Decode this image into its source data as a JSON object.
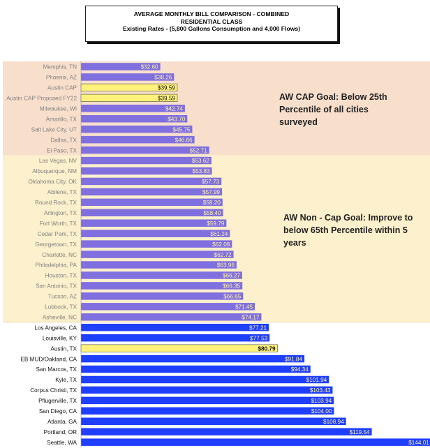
{
  "colors": {
    "zone_cap_bg": "#F8DFCC",
    "zone_noncap_bg": "#FDF0CC",
    "bar_purple": "#7F6FDF",
    "bar_yellow": "#FFF27A",
    "bar_blue": "#1F3FFF",
    "label_gray": "#7F7F7F",
    "label_dark": "#111111",
    "value_light": "#FFF3A8",
    "value_dark": "#111111"
  },
  "goals": {
    "cap": "AW CAP Goal: Below 25th Percentile of all cities surveyed",
    "noncap": "AW Non - Cap Goal: Improve to below 65th Percentile within 5 years"
  },
  "chart_data": {
    "type": "bar",
    "orientation": "horizontal",
    "title": "AVERAGE MONTHLY BILL COMPARISON - COMBINED",
    "subtitle": "RESIDENTIAL CLASS",
    "subtitle2": "Existing Rates - (5,800 Gallons Consumption and 4,000 Flows)",
    "xlim": [
      0,
      150
    ],
    "grid": false,
    "categories": [
      "Memphis, TN",
      "Phoenix, AZ",
      "Austin CAP",
      "Austin CAP Proposed FY22",
      "Milwaukee, WI",
      "Amarillo, TX",
      "Salt Lake City, UT",
      "Dallas, TX",
      "El Paso, TX",
      "Las Vegas, NV",
      "Albuquerque, NM",
      "Oklahoma City, OK",
      "Abilene, TX",
      "Round Rock, TX",
      "Arlington, TX",
      "Fort Worth, TX",
      "Cedar Park, TX",
      "Georgetown, TX",
      "Charlotte, NC",
      "Philadelphia, PA",
      "Houston, TX",
      "San Antonio, TX",
      "Tucson, AZ",
      "Lubbock, TX",
      "Asheville, NC",
      "Los Angeles, CA",
      "Louisville, KY",
      "Austin, TX",
      "EB MUD/Oakland, CA",
      "San Marcos, TX",
      "Kyle, TX",
      "Corpus Christi, TX",
      "Pflugerville, TX",
      "San Diego, CA",
      "Atlanta, GA",
      "Portland, OR",
      "Seattle, WA"
    ],
    "values": [
      32.6,
      38.26,
      39.59,
      39.59,
      42.74,
      43.7,
      45.75,
      46.66,
      52.71,
      53.62,
      53.83,
      57.73,
      57.99,
      58.2,
      58.4,
      59.79,
      61.24,
      62.08,
      62.72,
      63.96,
      66.27,
      66.35,
      66.65,
      71.45,
      74.17,
      77.21,
      77.53,
      80.79,
      91.84,
      94.34,
      101.94,
      103.43,
      103.94,
      104.0,
      108.94,
      119.54,
      144.01
    ],
    "value_labels": [
      "$32.60",
      "$38.26",
      "$39.59",
      "$39.59",
      "$42.74",
      "$43.70",
      "$45.75",
      "$46.66",
      "$52.71",
      "$53.62",
      "$53.83",
      "$57.73",
      "$57.99",
      "$58.20",
      "$58.40",
      "$59.79",
      "$61.24",
      "$62.08",
      "$62.72",
      "$63.96",
      "$66.27",
      "$66.35",
      "$66.65",
      "$71.45",
      "$74.17",
      "$77.21",
      "$77.53",
      "$80.79",
      "$91.84",
      "$94.34",
      "$101.94",
      "$103.43",
      "$103.94",
      "$104.00",
      "$108.94",
      "$119.54",
      "$144.01"
    ],
    "bar_group": [
      "cap",
      "cap",
      "highlight",
      "highlight",
      "cap",
      "cap",
      "cap",
      "cap",
      "cap",
      "noncap",
      "noncap",
      "noncap",
      "noncap",
      "noncap",
      "noncap",
      "noncap",
      "noncap",
      "noncap",
      "noncap",
      "noncap",
      "noncap",
      "noncap",
      "noncap",
      "noncap",
      "noncap",
      "other",
      "other",
      "highlight",
      "other",
      "other",
      "other",
      "other",
      "other",
      "other",
      "other",
      "other",
      "other"
    ],
    "zones": [
      {
        "name": "AW CAP Goal zone",
        "first": 0,
        "last": 8
      },
      {
        "name": "AW Non - Cap Goal zone",
        "first": 9,
        "last": 24
      }
    ]
  }
}
